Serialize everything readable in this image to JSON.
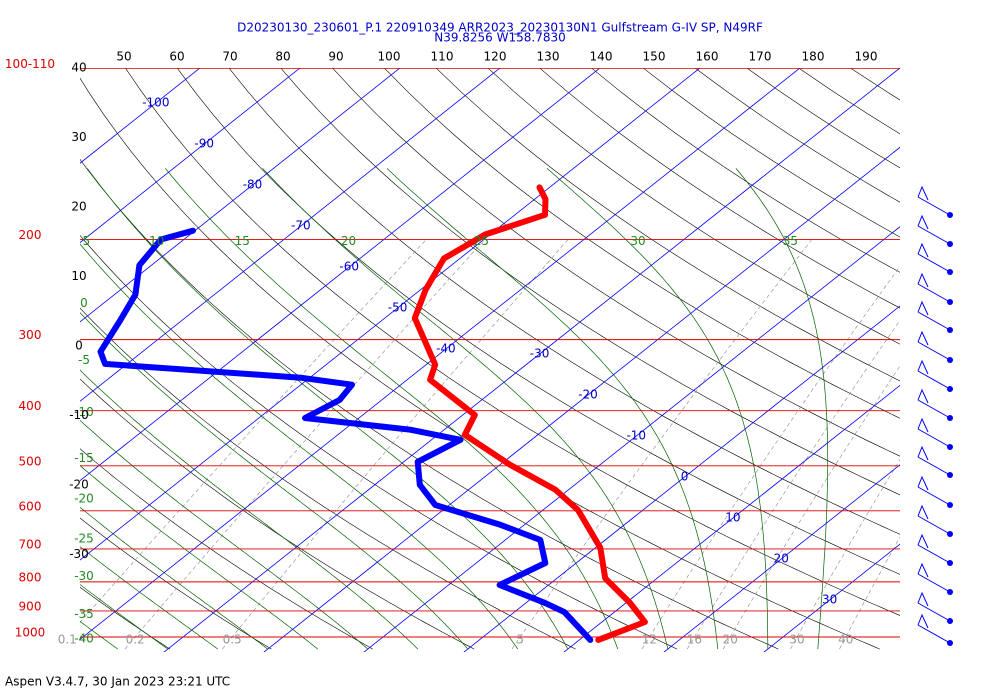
{
  "chart_data": {
    "type": "skewt",
    "title": "D20230130_230601_P.1 220910349 ARR2023_20230130N1 Gulfstream G-IV SP, N49RF",
    "subtitle": "N39.8256 W158.7830",
    "footer": "Aspen V3.4.7, 30 Jan 2023  23:21 UTC",
    "log_y": true,
    "ylim": [
      1000,
      100
    ],
    "yticks": [
      {
        "value": 100,
        "label": "100-110"
      },
      200,
      300,
      400,
      500,
      600,
      700,
      800,
      900,
      1000
    ],
    "top_ticks": [
      50,
      60,
      70,
      80,
      90,
      100,
      110,
      120,
      130,
      140,
      150,
      160,
      170,
      180,
      190
    ],
    "left_ticks": [
      40,
      30,
      20,
      10,
      0,
      -10,
      -20,
      -30
    ],
    "isotherms": [
      -100,
      -90,
      -80,
      -70,
      -60,
      -50,
      -40,
      -30,
      -20,
      -10,
      0,
      10,
      20,
      30
    ],
    "moist_adiabats": [
      -40,
      -35,
      -30,
      -25,
      -20,
      -15,
      -10,
      -5,
      0,
      5,
      10,
      15,
      20,
      25,
      30,
      35
    ],
    "mixing_ratios": [
      0.1,
      0.2,
      0.5,
      5,
      12,
      16,
      20,
      30,
      40
    ],
    "series": [
      {
        "color": "#ff0000",
        "pressure": [
          1012,
          941,
          871,
          788,
          697,
          598,
          551,
          498,
          441,
          407,
          353,
          332,
          275,
          245,
          216,
          196,
          181,
          170,
          162
        ],
        "values": [
          11.9,
          14.3,
          10.4,
          4.8,
          0.5,
          -6.5,
          -11.3,
          -19.0,
          -27.3,
          -28.8,
          -37.7,
          -39.1,
          -47.0,
          -49.5,
          -51.6,
          -50.5,
          -47.0,
          -48.9,
          -51.0
        ]
      },
      {
        "color": "#0000ff",
        "pressure": [
          1012,
          904,
          871,
          810,
          741,
          675,
          635,
          586,
          540,
          492,
          450,
          432,
          412,
          383,
          360,
          350,
          331,
          315,
          277,
          250,
          222,
          200,
          193
        ],
        "values": [
          11.1,
          5.0,
          1.9,
          -4.9,
          -3.1,
          -6.5,
          -12.4,
          -21.4,
          -25.5,
          -28.6,
          -27.1,
          -33.4,
          -45.4,
          -44.2,
          -44.9,
          -50.9,
          -72.2,
          -74.2,
          -76.2,
          -77.9,
          -81.2,
          -82.3,
          -80.2
        ]
      }
    ]
  }
}
